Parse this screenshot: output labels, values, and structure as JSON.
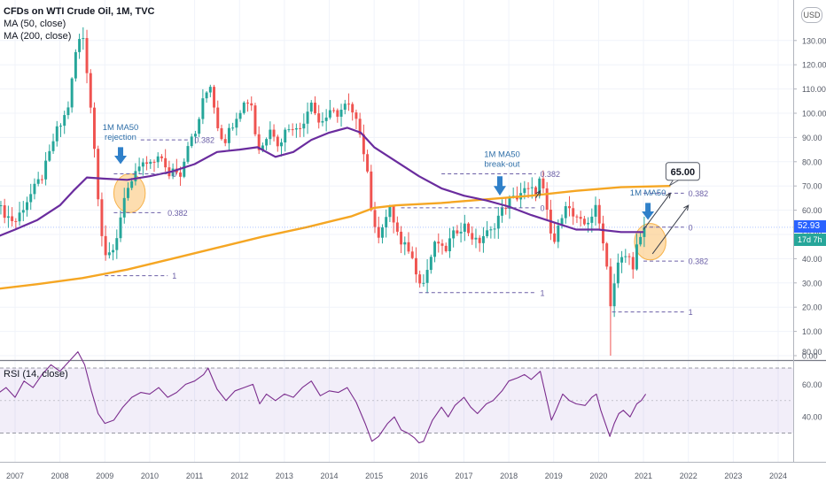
{
  "chart_data": [
    {
      "type": "candlestick",
      "title": "CFDs on WTI Crude Oil, 1M, TVC",
      "indicators": [
        "MA (50, close)",
        "MA (200, close)"
      ],
      "currency_button": "USD",
      "last_price": "52.93",
      "countdown": "17d 7h",
      "y_axis": {
        "min": 0,
        "max": 140,
        "ticks": [
          "0.00",
          "10.00",
          "20.00",
          "30.00",
          "40.00",
          "50.00",
          "60.00",
          "70.00",
          "80.00",
          "90.00",
          "100.00",
          "110.00",
          "120.00",
          "130.00"
        ]
      },
      "x_axis": {
        "range": [
          2006.6,
          2024.6
        ],
        "ticks": [
          "2007",
          "2008",
          "2009",
          "2010",
          "2011",
          "2012",
          "2013",
          "2014",
          "2015",
          "2016",
          "2017",
          "2018",
          "2019",
          "2020",
          "2021",
          "2022",
          "2023",
          "2024"
        ]
      },
      "colors": {
        "up": "#26a69a",
        "down": "#ef5350",
        "ma50": "#6a2c9e",
        "ma200": "#f5a623",
        "annotation": "#2962ff",
        "fib": "#6b5fa6"
      },
      "ohlc_anchors": [
        [
          2006.6,
          62
        ],
        [
          2006.8,
          58
        ],
        [
          2007.0,
          55
        ],
        [
          2007.2,
          62
        ],
        [
          2007.4,
          68
        ],
        [
          2007.6,
          74
        ],
        [
          2007.75,
          82
        ],
        [
          2007.9,
          92
        ],
        [
          2008.05,
          96
        ],
        [
          2008.2,
          104
        ],
        [
          2008.35,
          125
        ],
        [
          2008.5,
          134
        ],
        [
          2008.6,
          118
        ],
        [
          2008.7,
          100
        ],
        [
          2008.8,
          78
        ],
        [
          2008.9,
          55
        ],
        [
          2009.0,
          42
        ],
        [
          2009.15,
          40
        ],
        [
          2009.3,
          52
        ],
        [
          2009.45,
          68
        ],
        [
          2009.6,
          70
        ],
        [
          2009.75,
          78
        ],
        [
          2009.9,
          79
        ],
        [
          2010.05,
          78
        ],
        [
          2010.2,
          84
        ],
        [
          2010.4,
          74
        ],
        [
          2010.55,
          78
        ],
        [
          2010.7,
          75
        ],
        [
          2010.85,
          88
        ],
        [
          2011.0,
          90
        ],
        [
          2011.2,
          106
        ],
        [
          2011.35,
          112
        ],
        [
          2011.5,
          96
        ],
        [
          2011.65,
          88
        ],
        [
          2011.8,
          94
        ],
        [
          2011.95,
          100
        ],
        [
          2012.1,
          104
        ],
        [
          2012.25,
          106
        ],
        [
          2012.35,
          92
        ],
        [
          2012.45,
          84
        ],
        [
          2012.55,
          88
        ],
        [
          2012.7,
          96
        ],
        [
          2012.85,
          86
        ],
        [
          2013.0,
          92
        ],
        [
          2013.15,
          96
        ],
        [
          2013.3,
          92
        ],
        [
          2013.45,
          98
        ],
        [
          2013.6,
          106
        ],
        [
          2013.75,
          96
        ],
        [
          2013.9,
          98
        ],
        [
          2014.05,
          100
        ],
        [
          2014.2,
          100
        ],
        [
          2014.4,
          104
        ],
        [
          2014.55,
          98
        ],
        [
          2014.7,
          92
        ],
        [
          2014.85,
          76
        ],
        [
          2014.95,
          58
        ],
        [
          2015.05,
          48
        ],
        [
          2015.2,
          55
        ],
        [
          2015.35,
          60
        ],
        [
          2015.5,
          52
        ],
        [
          2015.6,
          45
        ],
        [
          2015.75,
          45
        ],
        [
          2015.9,
          37
        ],
        [
          2016.0,
          32
        ],
        [
          2016.1,
          30
        ],
        [
          2016.25,
          40
        ],
        [
          2016.4,
          48
        ],
        [
          2016.55,
          42
        ],
        [
          2016.7,
          48
        ],
        [
          2016.85,
          52
        ],
        [
          2017.0,
          54
        ],
        [
          2017.15,
          50
        ],
        [
          2017.3,
          46
        ],
        [
          2017.45,
          50
        ],
        [
          2017.6,
          51
        ],
        [
          2017.75,
          57
        ],
        [
          2017.9,
          61
        ],
        [
          2018.0,
          64
        ],
        [
          2018.15,
          65
        ],
        [
          2018.3,
          68
        ],
        [
          2018.45,
          68
        ],
        [
          2018.6,
          68
        ],
        [
          2018.7,
          73
        ],
        [
          2018.8,
          65
        ],
        [
          2018.9,
          52
        ],
        [
          2019.0,
          46
        ],
        [
          2019.1,
          52
        ],
        [
          2019.25,
          64
        ],
        [
          2019.4,
          58
        ],
        [
          2019.55,
          55
        ],
        [
          2019.7,
          54
        ],
        [
          2019.85,
          58
        ],
        [
          2019.95,
          61
        ],
        [
          2020.05,
          51
        ],
        [
          2020.15,
          45
        ],
        [
          2020.25,
          20
        ],
        [
          2020.35,
          30
        ],
        [
          2020.45,
          39
        ],
        [
          2020.55,
          40
        ],
        [
          2020.65,
          42
        ],
        [
          2020.75,
          36
        ],
        [
          2020.85,
          45
        ],
        [
          2020.95,
          48
        ],
        [
          2021.05,
          52.93
        ]
      ],
      "ma50_points": [
        [
          2006.6,
          49
        ],
        [
          2007.0,
          52
        ],
        [
          2007.5,
          56
        ],
        [
          2008.0,
          62
        ],
        [
          2008.3,
          68
        ],
        [
          2008.6,
          73.5
        ],
        [
          2009.0,
          73
        ],
        [
          2009.5,
          72.5
        ],
        [
          2010.0,
          74
        ],
        [
          2010.5,
          76
        ],
        [
          2011.0,
          79
        ],
        [
          2011.5,
          84
        ],
        [
          2012.0,
          85
        ],
        [
          2012.4,
          86
        ],
        [
          2012.8,
          82
        ],
        [
          2013.2,
          84
        ],
        [
          2013.6,
          89
        ],
        [
          2014.0,
          92
        ],
        [
          2014.4,
          94
        ],
        [
          2014.7,
          92
        ],
        [
          2015.0,
          86
        ],
        [
          2015.5,
          80
        ],
        [
          2016.0,
          74
        ],
        [
          2016.5,
          69
        ],
        [
          2017.0,
          66
        ],
        [
          2017.5,
          64
        ],
        [
          2018.0,
          61.5
        ],
        [
          2018.5,
          58
        ],
        [
          2019.0,
          55
        ],
        [
          2019.5,
          52
        ],
        [
          2020.0,
          52
        ],
        [
          2020.5,
          51
        ],
        [
          2021.0,
          51
        ]
      ],
      "ma200_points": [
        [
          2006.6,
          27.5
        ],
        [
          2007.5,
          29.5
        ],
        [
          2008.5,
          32
        ],
        [
          2009.5,
          35.5
        ],
        [
          2010.5,
          40
        ],
        [
          2011.5,
          44.5
        ],
        [
          2012.5,
          49
        ],
        [
          2013.5,
          53
        ],
        [
          2014.5,
          57.5
        ],
        [
          2015.0,
          61
        ],
        [
          2015.5,
          62
        ],
        [
          2016.5,
          63
        ],
        [
          2017.5,
          64.5
        ],
        [
          2018.5,
          66
        ],
        [
          2019.5,
          68
        ],
        [
          2020.5,
          69.5
        ],
        [
          2021.6,
          70
        ]
      ],
      "fib_lines": [
        {
          "label": "0.382",
          "x1": 2009.8,
          "x2": 2010.9,
          "y": 89
        },
        {
          "label": "0",
          "x1": 2009.2,
          "x2": 2010.4,
          "y": 75
        },
        {
          "label": "0.382",
          "x1": 2009.2,
          "x2": 2010.3,
          "y": 59
        },
        {
          "label": "1",
          "x1": 2009.0,
          "x2": 2010.4,
          "y": 33
        },
        {
          "label": "0.382",
          "x1": 2016.5,
          "x2": 2018.6,
          "y": 75
        },
        {
          "label": "0",
          "x1": 2015.6,
          "x2": 2018.6,
          "y": 61
        },
        {
          "label": "1",
          "x1": 2016.0,
          "x2": 2018.6,
          "y": 26
        },
        {
          "label": "0.382",
          "x1": 2021.0,
          "x2": 2021.9,
          "y": 67
        },
        {
          "label": "0",
          "x1": 2021.0,
          "x2": 2021.9,
          "y": 53
        },
        {
          "label": "0.382",
          "x1": 2021.0,
          "x2": 2021.9,
          "y": 39
        },
        {
          "label": "1",
          "x1": 2020.3,
          "x2": 2021.9,
          "y": 18
        }
      ],
      "annotations": [
        {
          "lines": [
            "1M MA50",
            "rejection"
          ],
          "x": 2009.35,
          "y": 89
        },
        {
          "lines": [
            "1M MA50",
            "break-out"
          ],
          "x": 2017.85,
          "y": 78
        },
        {
          "lines": [
            "1M MA50"
          ],
          "x": 2021.1,
          "y": 66
        }
      ],
      "arrows": [
        {
          "x": 2009.35,
          "y_from": 86,
          "y_to": 79
        },
        {
          "x": 2017.8,
          "y_from": 74,
          "y_to": 66
        },
        {
          "x": 2021.1,
          "y_from": 63,
          "y_to": 56
        }
      ],
      "ellipses": [
        {
          "x": 2009.55,
          "y": 67,
          "rx_years": 0.35,
          "ry": 8
        },
        {
          "x": 2021.15,
          "y": 47,
          "rx_years": 0.35,
          "ry": 7.5
        }
      ],
      "projection_lines": [
        {
          "x1": 2021.0,
          "y1": 52,
          "x2": 2021.6,
          "y2": 67
        },
        {
          "x1": 2021.2,
          "y1": 42,
          "x2": 2022.0,
          "y2": 62
        },
        {
          "x1": 2018.6,
          "y1": 65,
          "x2": 2018.7,
          "y2": 68
        }
      ],
      "target_label": {
        "text": "65.00",
        "x": 2021.5,
        "y": 76
      }
    },
    {
      "type": "line",
      "title": "RSI (14, close)",
      "y_axis": {
        "min": 20,
        "max": 85,
        "ticks": [
          "40.00",
          "60.00",
          "80.00"
        ]
      },
      "band": [
        30,
        70
      ],
      "color": "#7b2d8e",
      "points": [
        [
          2006.6,
          54
        ],
        [
          2006.8,
          58
        ],
        [
          2007.0,
          52
        ],
        [
          2007.2,
          62
        ],
        [
          2007.4,
          58
        ],
        [
          2007.6,
          66
        ],
        [
          2007.8,
          72
        ],
        [
          2008.0,
          68
        ],
        [
          2008.2,
          74
        ],
        [
          2008.4,
          80
        ],
        [
          2008.55,
          72
        ],
        [
          2008.7,
          56
        ],
        [
          2008.85,
          42
        ],
        [
          2009.0,
          36
        ],
        [
          2009.2,
          38
        ],
        [
          2009.4,
          46
        ],
        [
          2009.6,
          52
        ],
        [
          2009.8,
          55
        ],
        [
          2010.0,
          54
        ],
        [
          2010.2,
          58
        ],
        [
          2010.4,
          52
        ],
        [
          2010.6,
          55
        ],
        [
          2010.8,
          60
        ],
        [
          2011.0,
          62
        ],
        [
          2011.2,
          66
        ],
        [
          2011.3,
          70
        ],
        [
          2011.5,
          57
        ],
        [
          2011.7,
          50
        ],
        [
          2011.9,
          56
        ],
        [
          2012.1,
          58
        ],
        [
          2012.3,
          60
        ],
        [
          2012.45,
          48
        ],
        [
          2012.6,
          54
        ],
        [
          2012.8,
          50
        ],
        [
          2013.0,
          54
        ],
        [
          2013.2,
          52
        ],
        [
          2013.4,
          58
        ],
        [
          2013.6,
          62
        ],
        [
          2013.8,
          53
        ],
        [
          2014.0,
          56
        ],
        [
          2014.2,
          55
        ],
        [
          2014.4,
          58
        ],
        [
          2014.6,
          49
        ],
        [
          2014.8,
          36
        ],
        [
          2014.95,
          25
        ],
        [
          2015.1,
          28
        ],
        [
          2015.3,
          36
        ],
        [
          2015.45,
          40
        ],
        [
          2015.6,
          32
        ],
        [
          2015.75,
          30
        ],
        [
          2015.9,
          27
        ],
        [
          2016.0,
          24
        ],
        [
          2016.1,
          25
        ],
        [
          2016.3,
          38
        ],
        [
          2016.5,
          46
        ],
        [
          2016.65,
          40
        ],
        [
          2016.8,
          47
        ],
        [
          2017.0,
          52
        ],
        [
          2017.15,
          46
        ],
        [
          2017.3,
          42
        ],
        [
          2017.5,
          48
        ],
        [
          2017.65,
          50
        ],
        [
          2017.85,
          56
        ],
        [
          2018.0,
          62
        ],
        [
          2018.2,
          64
        ],
        [
          2018.35,
          66
        ],
        [
          2018.5,
          63
        ],
        [
          2018.7,
          68
        ],
        [
          2018.8,
          56
        ],
        [
          2018.95,
          38
        ],
        [
          2019.05,
          44
        ],
        [
          2019.2,
          54
        ],
        [
          2019.35,
          50
        ],
        [
          2019.5,
          48
        ],
        [
          2019.7,
          47
        ],
        [
          2019.85,
          52
        ],
        [
          2019.95,
          54
        ],
        [
          2020.05,
          44
        ],
        [
          2020.15,
          36
        ],
        [
          2020.25,
          28
        ],
        [
          2020.35,
          36
        ],
        [
          2020.45,
          42
        ],
        [
          2020.55,
          44
        ],
        [
          2020.7,
          40
        ],
        [
          2020.85,
          48
        ],
        [
          2020.95,
          50
        ],
        [
          2021.05,
          54
        ]
      ]
    }
  ]
}
